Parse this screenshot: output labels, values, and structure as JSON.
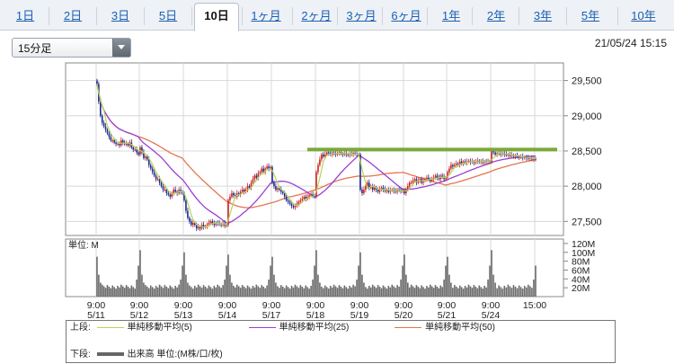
{
  "tabs": [
    {
      "label": "1日"
    },
    {
      "label": "2日"
    },
    {
      "label": "3日"
    },
    {
      "label": "5日"
    },
    {
      "label": "10日",
      "active": true
    },
    {
      "label": "1ヶ月"
    },
    {
      "label": "2ヶ月"
    },
    {
      "label": "3ヶ月"
    },
    {
      "label": "6ヶ月"
    },
    {
      "label": "1年"
    },
    {
      "label": "2年"
    },
    {
      "label": "3年"
    },
    {
      "label": "5年"
    },
    {
      "label": "10年"
    }
  ],
  "interval_select": {
    "value": "15分足"
  },
  "timestamp": "21/05/24 15:15",
  "legend": {
    "upper_label": "上段:",
    "lower_label": "下段:",
    "ma5": "単純移動平均(5)",
    "ma25": "単純移動平均(25)",
    "ma50": "単純移動平均(50)",
    "volume": "出来高 単位:(M株/口/枚)"
  },
  "colors": {
    "ma5": "#b6d35c",
    "ma25": "#9b3fd1",
    "ma50": "#e8734e",
    "up": "#d11f1f",
    "down": "#1f2a8c",
    "resistance": "#7aa83a",
    "volume": "#6b6b6b"
  },
  "chart_data": [
    {
      "type": "candlestick",
      "y_ticks": [
        "29,500",
        "29,000",
        "28,500",
        "28,000",
        "27,500"
      ],
      "ylim": [
        27300,
        29750
      ],
      "x_ticks": [
        {
          "time": "9:00",
          "date": "5/11"
        },
        {
          "time": "9:00",
          "date": "5/12"
        },
        {
          "time": "9:00",
          "date": "5/13"
        },
        {
          "time": "9:00",
          "date": "5/14"
        },
        {
          "time": "9:00",
          "date": "5/17"
        },
        {
          "time": "9:00",
          "date": "5/18"
        },
        {
          "time": "9:00",
          "date": "5/19"
        },
        {
          "time": "9:00",
          "date": "5/20"
        },
        {
          "time": "9:00",
          "date": "5/21"
        },
        {
          "time": "9:00",
          "date": "5/24"
        },
        {
          "time": "15:00",
          "date": ""
        }
      ],
      "close_path": [
        {
          "day": "5/11",
          "v": [
            29450,
            29200,
            29000,
            28900,
            28850,
            28800,
            28750,
            28700,
            28650,
            28650,
            28620,
            28600,
            28600,
            28580,
            28650,
            28620,
            28600,
            28600,
            28580,
            28620,
            28550,
            28520,
            28520,
            28480,
            28450
          ]
        },
        {
          "day": "5/12",
          "v": [
            28550,
            28480,
            28400,
            28420,
            28380,
            28300,
            28250,
            28200,
            28150,
            28100,
            28100,
            28050,
            28000,
            27950,
            27950,
            27900,
            27880,
            27850,
            27900,
            27950,
            27920,
            27900,
            27950,
            27920,
            27900
          ]
        },
        {
          "day": "5/13",
          "v": [
            27800,
            27650,
            27550,
            27500,
            27450,
            27480,
            27450,
            27400,
            27420,
            27400,
            27450,
            27420,
            27430,
            27450,
            27480,
            27500,
            27470,
            27450,
            27480,
            27470,
            27460,
            27450,
            27470,
            27440,
            27450
          ]
        },
        {
          "day": "5/14",
          "v": [
            27800,
            27850,
            27900,
            27870,
            27850,
            27900,
            27880,
            27920,
            27950,
            27920,
            27950,
            28000,
            27980,
            28050,
            28100,
            28150,
            28120,
            28180,
            28200,
            28250,
            28200,
            28250,
            28280,
            28250,
            28270
          ]
        },
        {
          "day": "5/17",
          "v": [
            28050,
            28000,
            27950,
            27970,
            27950,
            27920,
            27900,
            27850,
            27800,
            27780,
            27750,
            27720,
            27700,
            27720,
            27750,
            27780,
            27800,
            27820,
            27850,
            27820,
            27850,
            27870,
            27880,
            27870,
            27850
          ]
        },
        {
          "day": "5/18",
          "v": [
            28200,
            28300,
            28380,
            28450,
            28420,
            28450,
            28480,
            28470,
            28450,
            28480,
            28460,
            28450,
            28470,
            28480,
            28460,
            28450,
            28470,
            28450,
            28440,
            28460,
            28450,
            28470,
            28460,
            28450,
            28450
          ]
        },
        {
          "day": "5/19",
          "v": [
            27950,
            27900,
            27950,
            28000,
            28050,
            27980,
            28000,
            27950,
            27980,
            27950,
            27920,
            27950,
            27980,
            27950,
            27930,
            27950,
            27920,
            27940,
            27950,
            27930,
            27920,
            27950,
            27940,
            27930,
            27950
          ]
        },
        {
          "day": "5/20",
          "v": [
            27900,
            27950,
            28000,
            28050,
            28050,
            28080,
            28100,
            28050,
            28080,
            28100,
            28050,
            28080,
            28100,
            28120,
            28100,
            28080,
            28100,
            28120,
            28150,
            28120,
            28100,
            28150,
            28130,
            28100,
            28120
          ]
        },
        {
          "day": "5/21",
          "v": [
            28200,
            28250,
            28300,
            28280,
            28300,
            28320,
            28300,
            28350,
            28320,
            28350,
            28330,
            28350,
            28360,
            28340,
            28350,
            28330,
            28350,
            28360,
            28340,
            28350,
            28330,
            28350,
            28340,
            28350,
            28340
          ]
        },
        {
          "day": "5/24",
          "v": [
            28500,
            28480,
            28450,
            28470,
            28460,
            28450,
            28470,
            28450,
            28440,
            28450,
            28430,
            28440,
            28420,
            28430,
            28420,
            28410,
            28420,
            28400,
            28410,
            28400,
            28390,
            28400,
            28380,
            28390,
            28380
          ]
        }
      ],
      "resistance_level": 28520,
      "moving_averages": [
        "ma5",
        "ma25",
        "ma50"
      ]
    },
    {
      "type": "bar",
      "unit_label": "単位: M",
      "y_ticks": [
        "120M",
        "100M",
        "80M",
        "60M",
        "40M",
        "20M"
      ],
      "ylim": [
        0,
        130
      ],
      "daily_pattern_open_close": [
        90,
        70
      ],
      "daily_pattern_mid": 18
    }
  ]
}
